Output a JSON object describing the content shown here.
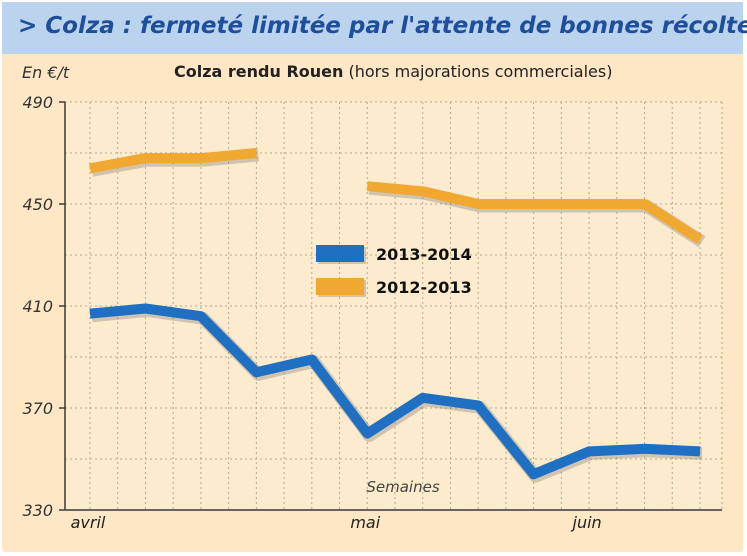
{
  "banner": {
    "title": "> Colza : fermeté limitée par l'attente de bonnes récoltes"
  },
  "unit_label": "En €/t",
  "chart_title": {
    "main": "Colza rendu Rouen",
    "sub": " (hors majorations commerciales)"
  },
  "colors": {
    "banner_bg": "#bcd3ee",
    "banner_text": "#1e4f9c",
    "panel_bg": "#fde7c4",
    "series_2013_2014": "#1f6fc2",
    "series_2012_2013": "#f0a830",
    "grid": "#b8a88a"
  },
  "chart_data": {
    "type": "line",
    "title": "Colza rendu Rouen",
    "subtitle": "(hors majorations commerciales)",
    "ylabel": "En €/t",
    "xlabel": "Semaines",
    "ylim": [
      330,
      490
    ],
    "yticks": [
      330,
      370,
      410,
      450,
      490
    ],
    "grid": true,
    "legend": "center",
    "x": [
      1,
      2,
      3,
      4,
      5,
      6,
      7,
      8,
      9,
      10,
      11,
      12
    ],
    "month_labels": [
      {
        "label": "avril",
        "week": 1
      },
      {
        "label": "mai",
        "week": 6
      },
      {
        "label": "juin",
        "week": 10
      }
    ],
    "series": [
      {
        "name": "2013-2014",
        "color": "#1f6fc2",
        "values": [
          407,
          409,
          406,
          384,
          389,
          360,
          374,
          371,
          344,
          353,
          354,
          353
        ]
      },
      {
        "name": "2012-2013",
        "color": "#f0a830",
        "values": [
          464,
          468,
          468,
          470,
          null,
          457,
          455,
          450,
          450,
          450,
          450,
          436
        ]
      }
    ]
  }
}
